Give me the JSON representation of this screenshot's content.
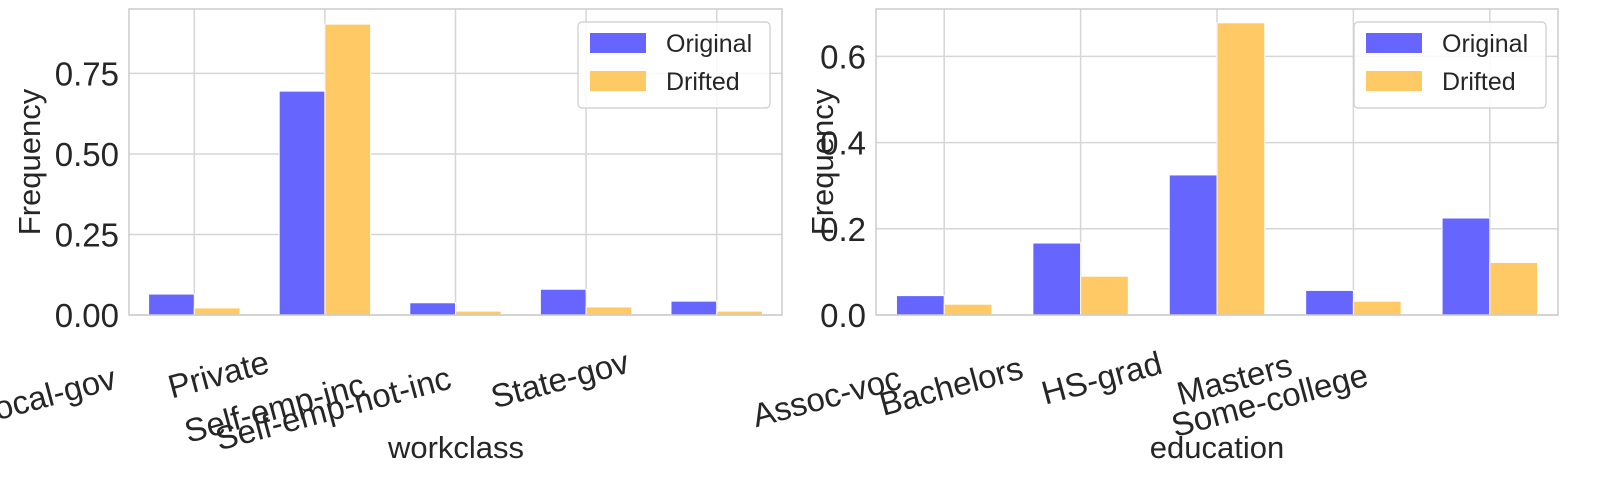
{
  "chart_data": [
    {
      "type": "bar",
      "xlabel": "workclass",
      "ylabel": "Frequency",
      "categories": [
        "Local-gov",
        "Private",
        "Self-emp-inc",
        "Self-emp-not-inc",
        "State-gov"
      ],
      "series": [
        {
          "name": "Original",
          "color": "#6666ff",
          "values": [
            0.065,
            0.695,
            0.038,
            0.08,
            0.043
          ]
        },
        {
          "name": "Drifted",
          "color": "#ffc966",
          "values": [
            0.022,
            0.903,
            0.012,
            0.025,
            0.012
          ]
        }
      ],
      "ylim": [
        0,
        0.95
      ],
      "yticks": [
        0.0,
        0.25,
        0.5,
        0.75
      ],
      "ytick_labels": [
        "0.00",
        "0.25",
        "0.50",
        "0.75"
      ],
      "grid": true,
      "legend_position": "top-right"
    },
    {
      "type": "bar",
      "xlabel": "education",
      "ylabel": "Frequency",
      "categories": [
        "Assoc-voc",
        "Bachelors",
        "HS-grad",
        "Masters",
        "Some-college"
      ],
      "series": [
        {
          "name": "Original",
          "color": "#6666ff",
          "values": [
            0.045,
            0.167,
            0.325,
            0.057,
            0.225
          ]
        },
        {
          "name": "Drifted",
          "color": "#ffc966",
          "values": [
            0.025,
            0.09,
            0.678,
            0.032,
            0.122
          ]
        }
      ],
      "ylim": [
        0,
        0.71
      ],
      "yticks": [
        0.0,
        0.2,
        0.4,
        0.6
      ],
      "ytick_labels": [
        "0.0",
        "0.2",
        "0.4",
        "0.6"
      ],
      "grid": true,
      "legend_position": "top-right"
    }
  ]
}
